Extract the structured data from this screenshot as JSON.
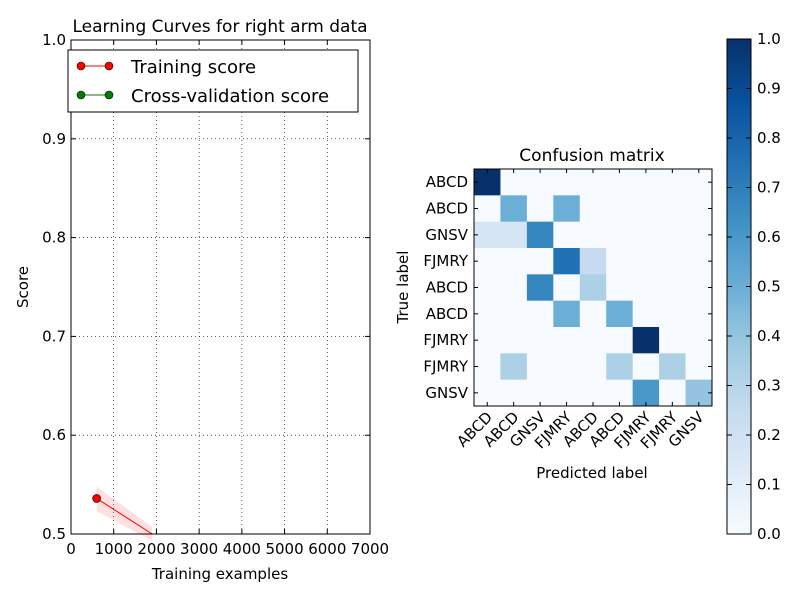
{
  "chart_data": [
    {
      "type": "line",
      "title": "Learning Curves for right arm data",
      "xlabel": "Training examples",
      "ylabel": "Score",
      "xlim": [
        0,
        7000
      ],
      "ylim": [
        0.5,
        1.0
      ],
      "xticks": [
        "0",
        "1000",
        "2000",
        "3000",
        "4000",
        "5000",
        "6000",
        "7000"
      ],
      "yticks": [
        "0.5",
        "0.6",
        "0.7",
        "0.8",
        "0.9",
        "1.0"
      ],
      "grid": true,
      "legend": "upper-left",
      "series": [
        {
          "name": "Training score",
          "color": "#ff0000",
          "x": [
            600,
            1900
          ],
          "y": [
            0.536,
            0.5
          ],
          "band_upper": [
            0.548,
            0.507
          ],
          "band_lower": [
            0.523,
            0.493
          ]
        },
        {
          "name": "Cross-validation score",
          "color": "#008000",
          "x": [],
          "y": []
        }
      ]
    },
    {
      "type": "heatmap",
      "title": "Confusion matrix",
      "xlabel": "Predicted label",
      "ylabel": "True label",
      "row_labels": [
        "ABCD",
        "ABCD",
        "GNSV",
        "FJMRY",
        "ABCD",
        "ABCD",
        "FJMRY",
        "FJMRY",
        "GNSV"
      ],
      "col_labels": [
        "ABCD",
        "ABCD",
        "GNSV",
        "FJMRY",
        "ABCD",
        "ABCD",
        "FJMRY",
        "FJMRY",
        "GNSV"
      ],
      "values": [
        [
          1.0,
          0,
          0,
          0,
          0,
          0,
          0,
          0,
          0
        ],
        [
          0,
          0.5,
          0,
          0.5,
          0,
          0,
          0,
          0,
          0
        ],
        [
          0.17,
          0.17,
          0.67,
          0,
          0,
          0,
          0,
          0,
          0
        ],
        [
          0,
          0,
          0,
          0.75,
          0.25,
          0,
          0,
          0,
          0
        ],
        [
          0,
          0,
          0.67,
          0,
          0.33,
          0,
          0,
          0,
          0
        ],
        [
          0,
          0,
          0,
          0.5,
          0,
          0.5,
          0,
          0,
          0
        ],
        [
          0,
          0,
          0,
          0,
          0,
          0,
          1.0,
          0,
          0
        ],
        [
          0,
          0.33,
          0,
          0,
          0,
          0.33,
          0,
          0.33,
          0
        ],
        [
          0,
          0,
          0,
          0,
          0,
          0,
          0.6,
          0,
          0.4
        ]
      ],
      "colormap": "Blues",
      "colorbar": {
        "range": [
          0,
          1.0
        ],
        "ticks": [
          "0.0",
          "0.1",
          "0.2",
          "0.3",
          "0.4",
          "0.5",
          "0.6",
          "0.7",
          "0.8",
          "0.9",
          "1.0"
        ]
      }
    }
  ]
}
